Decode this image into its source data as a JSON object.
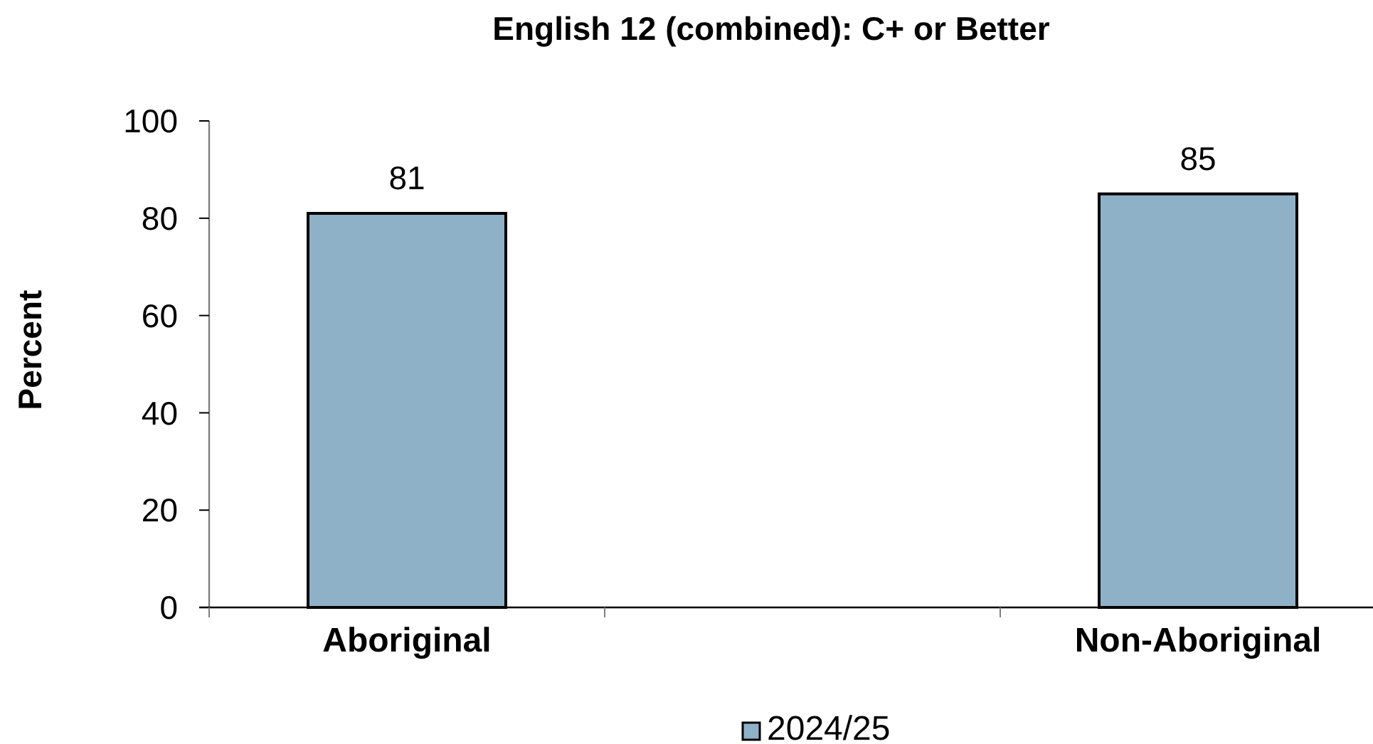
{
  "chart_data": {
    "type": "bar",
    "title": "English 12 (combined): C+ or Better",
    "ylabel": "Percent",
    "categories": [
      "Aboriginal",
      null,
      "Non-Aboriginal"
    ],
    "series": [
      {
        "name": "2024/25",
        "color": "#8fb1c7",
        "values": [
          81,
          null,
          85
        ]
      }
    ],
    "ylim": [
      0,
      100
    ],
    "yticks": [
      0,
      20,
      40,
      60,
      80,
      100
    ],
    "grid": false,
    "legend": "bottom",
    "data_labels": true
  }
}
